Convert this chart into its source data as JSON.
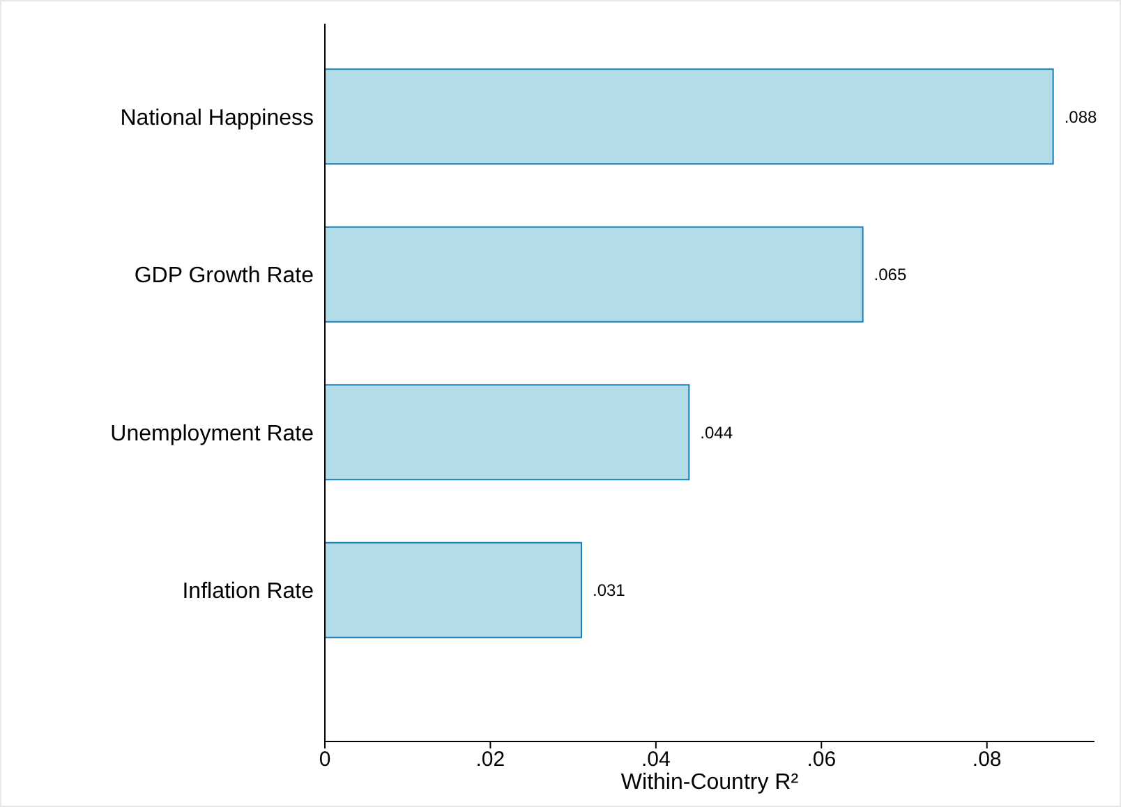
{
  "chart_data": {
    "type": "bar",
    "orientation": "horizontal",
    "xlabel": "Within-Country R²",
    "categories": [
      "National Happiness",
      "GDP Growth Rate",
      "Unemployment Rate",
      "Inflation Rate"
    ],
    "values": [
      0.088,
      0.065,
      0.044,
      0.031
    ],
    "value_labels": [
      ".088",
      ".065",
      ".044",
      ".031"
    ],
    "color": "#b3dce9",
    "xlim": [
      0,
      0.093
    ],
    "xticks": [
      0,
      {
        "value": 0.02,
        "label": ".02"
      },
      {
        "value": 0.04,
        "label": ".04"
      },
      {
        "value": 0.06,
        "label": ".06"
      },
      {
        "value": 0.08,
        "label": ".08"
      }
    ],
    "grid": false,
    "legend": false
  }
}
